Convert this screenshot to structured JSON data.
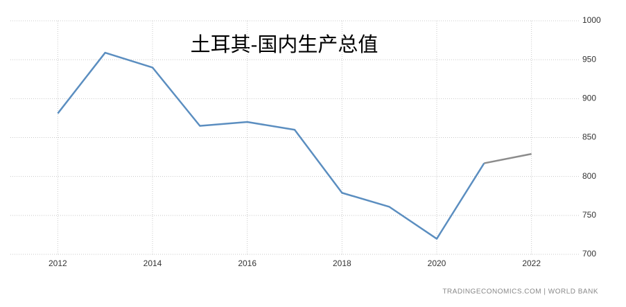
{
  "chart_data": {
    "type": "line",
    "title": "土耳其-国内生产总值",
    "x": [
      2012,
      2013,
      2014,
      2015,
      2016,
      2017,
      2018,
      2019,
      2020,
      2021,
      2022
    ],
    "series": [
      {
        "color": "#5b8ec0",
        "values": [
          881,
          959,
          940,
          865,
          870,
          860,
          779,
          761,
          720,
          817,
          null
        ]
      },
      {
        "color": "#8c8c8c",
        "values": [
          null,
          null,
          null,
          null,
          null,
          null,
          null,
          null,
          null,
          817,
          829
        ]
      }
    ],
    "xlim": [
      2011,
      2023
    ],
    "xticks": [
      2012,
      2014,
      2016,
      2018,
      2020,
      2022
    ],
    "ylim": [
      700,
      1000
    ],
    "yticks": [
      700,
      750,
      800,
      850,
      900,
      950,
      1000
    ],
    "grid": true,
    "source": "TRADINGECONOMICS.COM | WORLD BANK"
  }
}
